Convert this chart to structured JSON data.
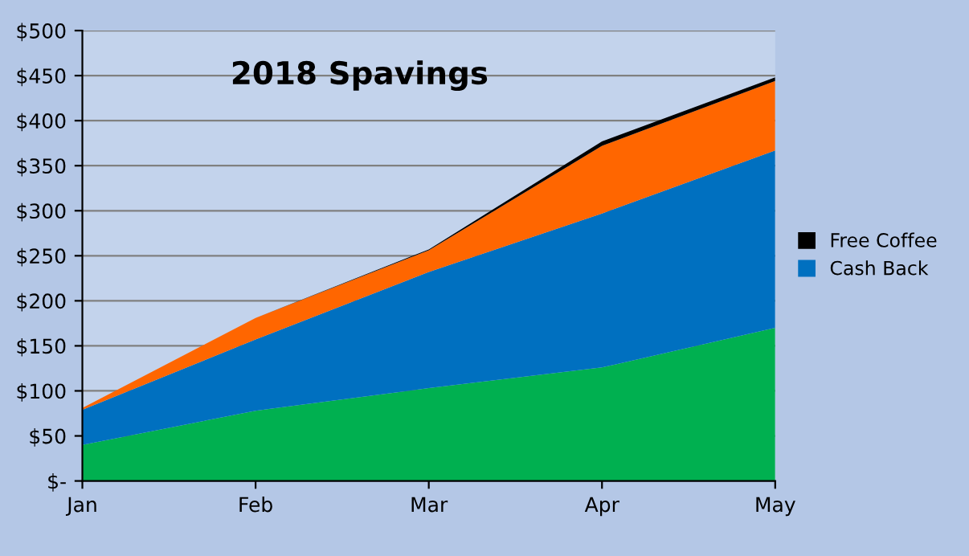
{
  "chart_data": {
    "type": "area",
    "stacked": true,
    "title": "2018 Spavings",
    "categories": [
      "Jan",
      "Feb",
      "Mar",
      "Apr",
      "May"
    ],
    "series": [
      {
        "color": "#00b050",
        "values": [
          40,
          78,
          103,
          126,
          170
        ]
      },
      {
        "name": "Cash Back",
        "color": "#0070c0",
        "values": [
          39,
          79,
          129,
          171,
          197
        ]
      },
      {
        "color": "#ff6600",
        "values": [
          2,
          24,
          24,
          75,
          77
        ]
      },
      {
        "name": "Free Coffee",
        "color": "#000000",
        "values": [
          0,
          0,
          1,
          5,
          4
        ]
      }
    ],
    "ylim": [
      0,
      500
    ],
    "yticks": [
      {
        "value": 0,
        "label": "$-"
      },
      {
        "value": 50,
        "label": "$50"
      },
      {
        "value": 100,
        "label": "$100"
      },
      {
        "value": 150,
        "label": "$150"
      },
      {
        "value": 200,
        "label": "$200"
      },
      {
        "value": 250,
        "label": "$250"
      },
      {
        "value": 300,
        "label": "$300"
      },
      {
        "value": 350,
        "label": "$350"
      },
      {
        "value": 400,
        "label": "$400"
      },
      {
        "value": 450,
        "label": "$450"
      },
      {
        "value": 500,
        "label": "$500"
      }
    ],
    "grid": "y",
    "legend": "right"
  }
}
